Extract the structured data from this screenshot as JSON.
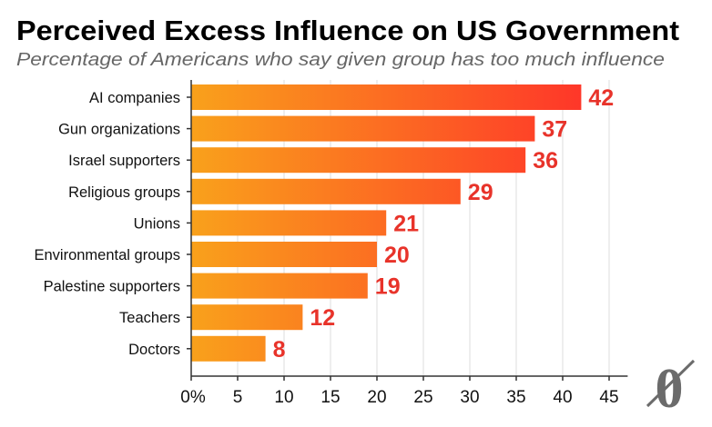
{
  "chart_data": {
    "type": "bar",
    "orientation": "horizontal",
    "title": "Perceived Excess Influence on US Government",
    "subtitle": "Percentage of Americans who say given group has too much influence",
    "categories": [
      "AI companies",
      "Gun organizations",
      "Israel supporters",
      "Religious groups",
      "Unions",
      "Environmental groups",
      "Palestine supporters",
      "Teachers",
      "Doctors"
    ],
    "values": [
      42,
      37,
      36,
      29,
      21,
      20,
      19,
      12,
      8
    ],
    "xlim": [
      0,
      47
    ],
    "xticks": [
      0,
      5,
      10,
      15,
      20,
      25,
      30,
      35,
      40,
      45
    ],
    "xtick_labels": [
      "0%",
      "5",
      "10",
      "15",
      "20",
      "25",
      "30",
      "35",
      "40",
      "45"
    ],
    "grid": true,
    "colors": {
      "gradient_start": "#f9a11b",
      "gradient_end": "#ff2f2a",
      "value_label": "#e8332a",
      "title": "#000000",
      "subtitle": "#666666",
      "logo": "#6b6b6b"
    }
  },
  "logo": {
    "text": "0"
  }
}
